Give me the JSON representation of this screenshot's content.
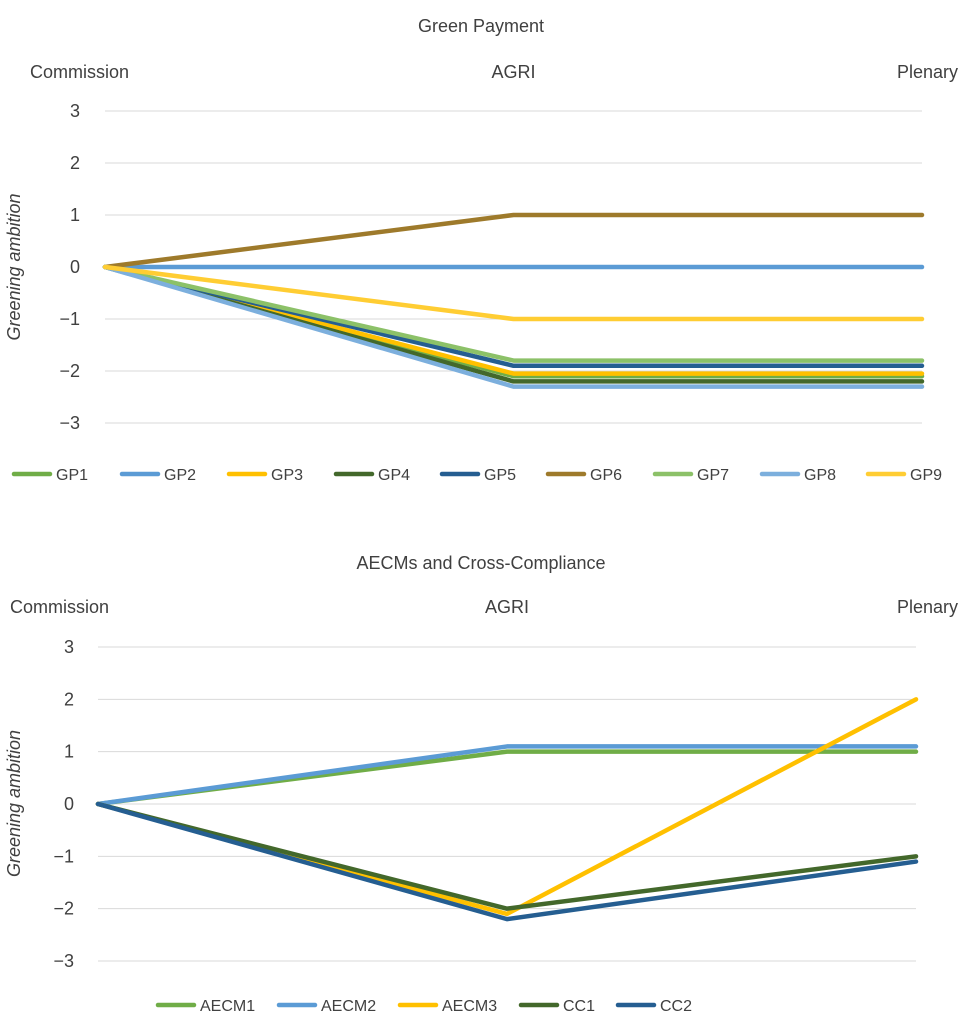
{
  "chart_data": [
    {
      "type": "line",
      "title": "Green Payment",
      "categories": [
        "Commission",
        "AGRI",
        "Plenary"
      ],
      "ylabel": "Greening ambition",
      "ylim": [
        -3,
        3
      ],
      "yticks": [
        "3",
        "2",
        "1",
        "0",
        "−1",
        "−2",
        "−3"
      ],
      "grid": true,
      "legend_position": "bottom",
      "series": [
        {
          "name": "GP1",
          "color": "#70ad47",
          "values": [
            0,
            -2.1,
            -2.1
          ]
        },
        {
          "name": "GP2",
          "color": "#5b9bd5",
          "values": [
            0,
            0,
            0
          ]
        },
        {
          "name": "GP3",
          "color": "#ffc000",
          "values": [
            0,
            -2.05,
            -2.05
          ]
        },
        {
          "name": "GP4",
          "color": "#43682b",
          "values": [
            0,
            -2.2,
            -2.2
          ]
        },
        {
          "name": "GP5",
          "color": "#255e91",
          "values": [
            0,
            -1.9,
            -1.9
          ]
        },
        {
          "name": "GP6",
          "color": "#9e7a2b",
          "values": [
            0,
            1,
            1
          ]
        },
        {
          "name": "GP7",
          "color": "#8cc168",
          "values": [
            0,
            -1.8,
            -1.8
          ]
        },
        {
          "name": "GP8",
          "color": "#7cafdd",
          "values": [
            0,
            -2.3,
            -2.3
          ]
        },
        {
          "name": "GP9",
          "color": "#ffcd33",
          "values": [
            0,
            -1,
            -1
          ]
        }
      ]
    },
    {
      "type": "line",
      "title": "AECMs and Cross-Compliance",
      "categories": [
        "Commission",
        "AGRI",
        "Plenary"
      ],
      "ylabel": "Greening ambition",
      "ylim": [
        -3,
        3
      ],
      "yticks": [
        "3",
        "2",
        "1",
        "0",
        "−1",
        "−2",
        "−3"
      ],
      "grid": true,
      "legend_position": "bottom",
      "series": [
        {
          "name": "AECM1",
          "color": "#70ad47",
          "values": [
            0,
            1,
            1
          ]
        },
        {
          "name": "AECM2",
          "color": "#5b9bd5",
          "values": [
            0,
            1.1,
            1.1
          ]
        },
        {
          "name": "AECM3",
          "color": "#ffc000",
          "values": [
            0,
            -2.1,
            2
          ]
        },
        {
          "name": "CC1",
          "color": "#43682b",
          "values": [
            0,
            -2,
            -1
          ]
        },
        {
          "name": "CC2",
          "color": "#255e91",
          "values": [
            0,
            -2.2,
            -1.1
          ]
        }
      ]
    }
  ]
}
